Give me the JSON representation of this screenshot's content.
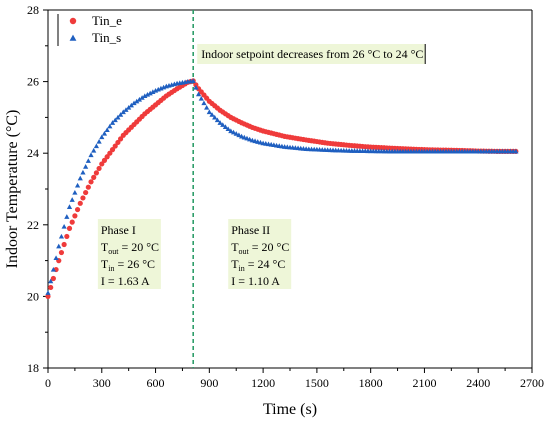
{
  "chart_data": {
    "type": "scatter",
    "xlabel": "Time (s)",
    "ylabel": "Indoor Temperature (°C)",
    "xlim": [
      0,
      2700
    ],
    "ylim": [
      18,
      28
    ],
    "x_ticks": [
      0,
      300,
      600,
      900,
      1200,
      1500,
      1800,
      2100,
      2400,
      2700
    ],
    "y_ticks": [
      18,
      20,
      22,
      24,
      26,
      28
    ],
    "grid": false,
    "legend_position": "top-left",
    "series": [
      {
        "name": "Tin_e",
        "marker": "circle",
        "color": "#ef3b3b",
        "points": [
          [
            0,
            20.0
          ],
          [
            60,
            21.0
          ],
          [
            120,
            21.9
          ],
          [
            180,
            22.6
          ],
          [
            240,
            23.2
          ],
          [
            300,
            23.7
          ],
          [
            360,
            24.1
          ],
          [
            420,
            24.5
          ],
          [
            480,
            24.8
          ],
          [
            540,
            25.1
          ],
          [
            600,
            25.35
          ],
          [
            660,
            25.6
          ],
          [
            720,
            25.8
          ],
          [
            780,
            25.98
          ],
          [
            810,
            26.02
          ],
          [
            840,
            25.8
          ],
          [
            900,
            25.45
          ],
          [
            960,
            25.2
          ],
          [
            1020,
            25.0
          ],
          [
            1080,
            24.85
          ],
          [
            1140,
            24.72
          ],
          [
            1200,
            24.62
          ],
          [
            1320,
            24.47
          ],
          [
            1440,
            24.37
          ],
          [
            1560,
            24.28
          ],
          [
            1680,
            24.22
          ],
          [
            1800,
            24.17
          ],
          [
            1920,
            24.14
          ],
          [
            2040,
            24.11
          ],
          [
            2160,
            24.09
          ],
          [
            2280,
            24.08
          ],
          [
            2400,
            24.06
          ],
          [
            2520,
            24.05
          ],
          [
            2610,
            24.05
          ]
        ]
      },
      {
        "name": "Tin_s",
        "marker": "triangle",
        "color": "#1f5fc0",
        "points": [
          [
            0,
            20.1
          ],
          [
            60,
            21.4
          ],
          [
            120,
            22.5
          ],
          [
            180,
            23.3
          ],
          [
            240,
            23.95
          ],
          [
            300,
            24.45
          ],
          [
            360,
            24.85
          ],
          [
            420,
            25.15
          ],
          [
            480,
            25.4
          ],
          [
            540,
            25.6
          ],
          [
            600,
            25.75
          ],
          [
            660,
            25.87
          ],
          [
            720,
            25.95
          ],
          [
            780,
            26.0
          ],
          [
            810,
            26.02
          ],
          [
            840,
            25.65
          ],
          [
            900,
            25.15
          ],
          [
            960,
            24.85
          ],
          [
            1020,
            24.62
          ],
          [
            1080,
            24.47
          ],
          [
            1140,
            24.36
          ],
          [
            1200,
            24.28
          ],
          [
            1320,
            24.18
          ],
          [
            1440,
            24.12
          ],
          [
            1560,
            24.09
          ],
          [
            1680,
            24.07
          ],
          [
            1800,
            24.06
          ],
          [
            1920,
            24.05
          ],
          [
            2040,
            24.05
          ],
          [
            2160,
            24.05
          ],
          [
            2280,
            24.05
          ],
          [
            2400,
            24.05
          ],
          [
            2520,
            24.05
          ],
          [
            2610,
            24.05
          ]
        ]
      }
    ],
    "setpoint_line": {
      "x": 810,
      "color": "#2e9e6a"
    },
    "annotation_text": "Indoor setpoint decreases from 26 °C to 24 °C",
    "phases": [
      {
        "title": "Phase I",
        "lines": [
          {
            "var": "T",
            "sub": "out",
            "value": " = 20 °C"
          },
          {
            "var": "T",
            "sub": "in",
            "value": " = 26  °C"
          },
          {
            "var": "I",
            "sub": "",
            "value": " = 1.63 A"
          }
        ]
      },
      {
        "title": "Phase II",
        "lines": [
          {
            "var": "T",
            "sub": "out",
            "value": " = 20 °C"
          },
          {
            "var": "T",
            "sub": "in",
            "value": " = 24  °C"
          },
          {
            "var": "I",
            "sub": "",
            "value": " = 1.10 A"
          }
        ]
      }
    ],
    "annotation_bg": "#eef6d8"
  }
}
